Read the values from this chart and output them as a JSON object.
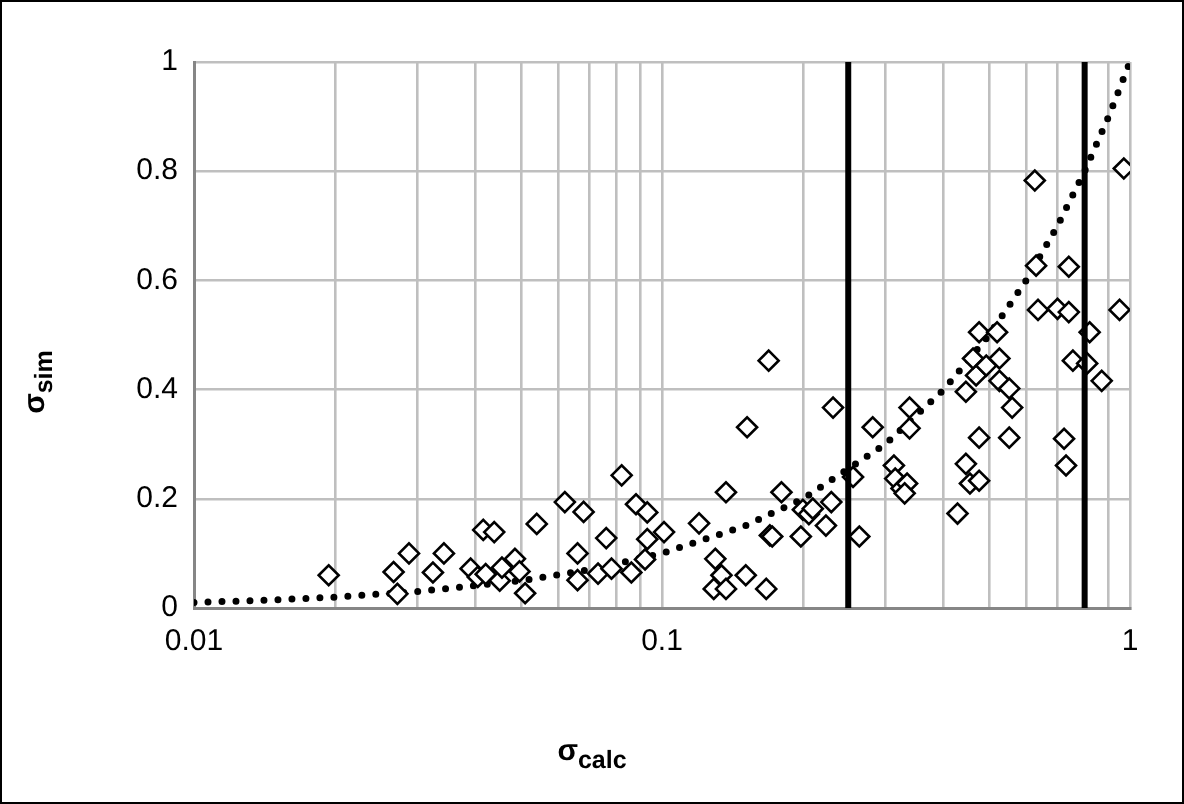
{
  "chart_data": {
    "type": "scatter",
    "xlabel": "σ$_{calc}$",
    "ylabel": "σ$_{sim}$",
    "log": "x",
    "grid": true,
    "xlim": [
      0.01,
      1
    ],
    "xticks": [
      0.01,
      {
        "value": 0.02,
        "label": null
      },
      {
        "value": 0.03,
        "label": null
      },
      {
        "value": 0.04,
        "label": null
      },
      {
        "value": 0.05,
        "label": null
      },
      {
        "value": 0.06,
        "label": null
      },
      {
        "value": 0.07,
        "label": null
      },
      {
        "value": 0.08,
        "label": null
      },
      {
        "value": 0.09,
        "label": null
      },
      0.1,
      {
        "value": 0.2,
        "label": null
      },
      {
        "value": 0.3,
        "label": null
      },
      {
        "value": 0.4,
        "label": null
      },
      {
        "value": 0.5,
        "label": null
      },
      {
        "value": 0.6,
        "label": null
      },
      {
        "value": 0.7,
        "label": null
      },
      {
        "value": 0.8,
        "label": null
      },
      {
        "value": 0.9,
        "label": null
      },
      1
    ],
    "ylim": [
      0,
      1
    ],
    "yticks": [
      0,
      0.2,
      0.4,
      0.6,
      0.8,
      1
    ],
    "ref_lines": [
      {
        "axis": "x",
        "value": 0.25,
        "color": "#000000"
      },
      {
        "axis": "x",
        "value": 0.8,
        "color": "#000000"
      }
    ],
    "series": [
      {
        "type": "scatter",
        "color": "#000000",
        "marker": "diamond",
        "x": [
          0.0194,
          0.0267,
          0.0272,
          0.0288,
          0.0324,
          0.0342,
          0.039,
          0.0404,
          0.0415,
          0.0438,
          0.042,
          0.045,
          0.0455,
          0.0485,
          0.0496,
          0.051,
          0.054,
          0.062,
          0.068,
          0.066,
          0.066,
          0.073,
          0.076,
          0.078,
          0.082,
          0.088,
          0.093,
          0.086,
          0.093,
          0.092,
          0.101,
          0.12,
          0.13,
          0.129,
          0.134,
          0.137,
          0.151,
          0.167,
          0.137,
          0.152,
          0.169,
          0.17,
          0.172,
          0.18,
          0.198,
          0.2,
          0.206,
          0.21,
          0.224,
          0.23,
          0.232,
          0.256,
          0.264,
          0.282,
          0.313,
          0.315,
          0.325,
          0.334,
          0.33,
          0.338,
          0.338,
          0.428,
          0.446,
          0.455,
          0.476,
          0.446,
          0.476,
          0.469,
          0.462,
          0.476,
          0.493,
          0.526,
          0.52,
          0.526,
          0.552,
          0.56,
          0.552,
          0.723,
          0.73,
          0.755,
          0.81,
          0.82,
          0.87,
          0.636,
          0.7,
          0.74,
          0.95,
          0.626,
          0.97,
          0.63,
          0.74
        ],
        "values": [
          0.06,
          0.066,
          0.026,
          0.1,
          0.065,
          0.1,
          0.072,
          0.057,
          0.143,
          0.139,
          0.062,
          0.05,
          0.074,
          0.09,
          0.067,
          0.027,
          0.154,
          0.194,
          0.176,
          0.1,
          0.051,
          0.063,
          0.128,
          0.072,
          0.243,
          0.19,
          0.175,
          0.065,
          0.126,
          0.089,
          0.139,
          0.155,
          0.09,
          0.035,
          0.06,
          0.035,
          0.06,
          0.035,
          0.212,
          0.331,
          0.453,
          0.133,
          0.131,
          0.212,
          0.131,
          0.18,
          0.172,
          0.182,
          0.151,
          0.194,
          0.367,
          0.24,
          0.131,
          0.331,
          0.261,
          0.237,
          0.219,
          0.228,
          0.21,
          0.367,
          0.329,
          0.173,
          0.264,
          0.228,
          0.233,
          0.396,
          0.312,
          0.426,
          0.457,
          0.505,
          0.444,
          0.457,
          0.505,
          0.416,
          0.402,
          0.367,
          0.312,
          0.31,
          0.261,
          0.453,
          0.448,
          0.505,
          0.416,
          0.546,
          0.548,
          0.542,
          0.546,
          0.783,
          0.805,
          0.627,
          0.625
        ]
      },
      {
        "type": "line",
        "color": "#000000",
        "line_style": "dotted",
        "marker": "none",
        "x": [
          0.01,
          0.015,
          0.02,
          0.03,
          0.05,
          0.07,
          0.1,
          0.15,
          0.2,
          0.3,
          0.4,
          0.5,
          0.6,
          0.7,
          0.8,
          0.9,
          1
        ],
        "values": [
          0.01,
          0.015,
          0.02,
          0.03,
          0.05,
          0.07,
          0.1,
          0.15,
          0.2,
          0.3,
          0.4,
          0.5,
          0.6,
          0.7,
          0.8,
          0.9,
          1
        ]
      }
    ]
  }
}
